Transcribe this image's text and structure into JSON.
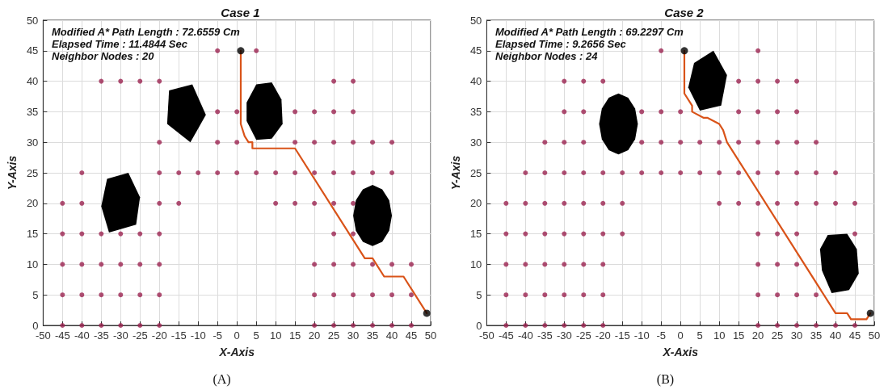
{
  "chart_data": [
    {
      "type": "scatter",
      "title": "Case 1",
      "xlabel": "X-Axis",
      "ylabel": "Y-Axis",
      "annotations": [
        "Modified A* Path Length : 72.6559 Cm",
        "Elapsed Time : 11.4844 Sec",
        "Neighbor Nodes : 20",
        "(A)"
      ],
      "xlim": [
        -50,
        50
      ],
      "xticks": [
        -50,
        -45,
        -40,
        -35,
        -30,
        -25,
        -20,
        -15,
        -10,
        -5,
        0,
        5,
        10,
        15,
        20,
        25,
        30,
        35,
        40,
        45,
        50
      ],
      "ylim": [
        0,
        50
      ],
      "yticks": [
        0,
        5,
        10,
        15,
        20,
        25,
        30,
        35,
        40,
        45,
        50
      ],
      "grid": true,
      "series": [
        {
          "type": "scatter",
          "color": "#9b2350",
          "x": [
            -45,
            -40,
            -35,
            -30,
            -25,
            -20,
            20,
            25,
            30,
            35,
            40,
            45,
            -45,
            -40,
            -35,
            -30,
            -25,
            -20,
            20,
            25,
            30,
            35,
            40,
            45,
            -45,
            -40,
            -35,
            -30,
            -25,
            -20,
            20,
            25,
            30,
            35,
            40,
            45,
            -45,
            -40,
            -35,
            -30,
            -25,
            -20,
            25,
            30,
            -45,
            -40,
            -20,
            -15,
            10,
            15,
            20,
            25,
            30,
            -40,
            -20,
            -15,
            -10,
            -5,
            0,
            5,
            10,
            15,
            20,
            25,
            30,
            35,
            40,
            -20,
            -5,
            0,
            15,
            20,
            25,
            30,
            35,
            40,
            -5,
            0,
            15,
            20,
            25,
            30,
            -35,
            -30,
            -25,
            -20,
            25,
            30,
            -5,
            5
          ],
          "values": [
            0,
            0,
            0,
            0,
            0,
            0,
            0,
            0,
            0,
            0,
            0,
            0,
            5,
            5,
            5,
            5,
            5,
            5,
            5,
            5,
            5,
            5,
            5,
            5,
            10,
            10,
            10,
            10,
            10,
            10,
            10,
            10,
            10,
            10,
            10,
            10,
            15,
            15,
            15,
            15,
            15,
            15,
            15,
            15,
            20,
            20,
            20,
            20,
            20,
            20,
            20,
            20,
            20,
            25,
            25,
            25,
            25,
            25,
            25,
            25,
            25,
            25,
            25,
            25,
            25,
            25,
            25,
            30,
            30,
            30,
            30,
            30,
            30,
            30,
            30,
            30,
            35,
            35,
            35,
            35,
            35,
            35,
            40,
            40,
            40,
            40,
            40,
            40,
            45,
            45
          ]
        },
        {
          "type": "line",
          "color": "#d95319",
          "x": [
            1,
            1,
            2,
            3,
            4,
            4,
            15,
            33,
            35,
            38,
            43,
            49
          ],
          "values": [
            45,
            33,
            31,
            30,
            30,
            29,
            29,
            11,
            11,
            8,
            8,
            2
          ]
        },
        {
          "type": "scatter",
          "color": "#000000",
          "x": [
            1,
            49
          ],
          "values": [
            45,
            2
          ]
        }
      ]
    },
    {
      "type": "scatter",
      "title": "Case 2",
      "xlabel": "X-Axis",
      "ylabel": "Y-Axis",
      "annotations": [
        "Modified A* Path Length : 69.2297 Cm",
        "Elapsed Time : 9.2656 Sec",
        "Neighbor Nodes : 24",
        "(B)"
      ],
      "xlim": [
        -50,
        50
      ],
      "xticks": [
        -50,
        -45,
        -40,
        -35,
        -30,
        -25,
        -20,
        -15,
        -10,
        -5,
        0,
        5,
        10,
        15,
        20,
        25,
        30,
        35,
        40,
        45,
        50
      ],
      "ylim": [
        0,
        50
      ],
      "yticks": [
        0,
        5,
        10,
        15,
        20,
        25,
        30,
        35,
        40,
        45,
        50
      ],
      "grid": true,
      "series": [
        {
          "type": "scatter",
          "color": "#9b2350",
          "x": [
            -45,
            -40,
            -35,
            -30,
            -25,
            -20,
            20,
            25,
            30,
            35,
            40,
            45,
            -45,
            -40,
            -35,
            -30,
            -25,
            -20,
            20,
            25,
            30,
            35,
            -45,
            -40,
            -35,
            -30,
            -25,
            -20,
            20,
            25,
            30,
            -45,
            -40,
            -35,
            -30,
            -25,
            -20,
            -15,
            20,
            25,
            30,
            45,
            -45,
            -40,
            -35,
            -30,
            -25,
            -20,
            -15,
            10,
            15,
            20,
            25,
            30,
            35,
            40,
            45,
            -40,
            -35,
            -30,
            -25,
            -20,
            -15,
            -10,
            -5,
            0,
            5,
            10,
            15,
            20,
            25,
            30,
            35,
            40,
            -35,
            -30,
            -25,
            -10,
            -5,
            0,
            5,
            10,
            15,
            20,
            25,
            30,
            35,
            -30,
            -25,
            -10,
            -5,
            0,
            15,
            20,
            25,
            30,
            -30,
            -25,
            -20,
            15,
            20,
            25,
            30,
            -5,
            20
          ],
          "values": [
            0,
            0,
            0,
            0,
            0,
            0,
            0,
            0,
            0,
            0,
            0,
            0,
            5,
            5,
            5,
            5,
            5,
            5,
            5,
            5,
            5,
            5,
            10,
            10,
            10,
            10,
            10,
            10,
            10,
            10,
            10,
            15,
            15,
            15,
            15,
            15,
            15,
            15,
            15,
            15,
            15,
            15,
            20,
            20,
            20,
            20,
            20,
            20,
            20,
            20,
            20,
            20,
            20,
            20,
            20,
            20,
            20,
            25,
            25,
            25,
            25,
            25,
            25,
            25,
            25,
            25,
            25,
            25,
            25,
            25,
            25,
            25,
            25,
            25,
            30,
            30,
            30,
            30,
            30,
            30,
            30,
            30,
            30,
            30,
            30,
            30,
            30,
            35,
            35,
            35,
            35,
            35,
            35,
            35,
            35,
            35,
            40,
            40,
            40,
            40,
            40,
            40,
            40,
            45,
            45
          ]
        },
        {
          "type": "line",
          "color": "#d95319",
          "x": [
            1,
            1,
            3,
            3,
            6,
            7,
            10,
            11,
            12,
            40,
            43,
            44,
            48,
            49
          ],
          "values": [
            45,
            38,
            36,
            35,
            34,
            34,
            33,
            32,
            30,
            2,
            2,
            1,
            1,
            2
          ]
        },
        {
          "type": "scatter",
          "color": "#000000",
          "x": [
            1,
            49
          ],
          "values": [
            45,
            2
          ]
        }
      ]
    }
  ]
}
